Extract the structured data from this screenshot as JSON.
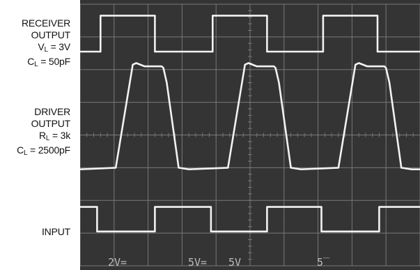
{
  "labels": {
    "receiver": {
      "line1": "RECEIVER",
      "line2": "OUTPUT",
      "vl_prefix": "V",
      "vl_sub": "L",
      "vl_value": " = 3V",
      "cl_prefix": "C",
      "cl_sub": "L",
      "cl_value": " = 50pF"
    },
    "driver": {
      "line1": "DRIVER",
      "line2": "OUTPUT",
      "rl_prefix": "R",
      "rl_sub": "L",
      "rl_value": " = 3k",
      "cl_prefix": "C",
      "cl_sub": "L",
      "cl_value": " = 2500pF"
    },
    "input": "INPUT"
  },
  "scope_readouts": [
    "2V=",
    "5V=",
    "5V",
    "5̅"
  ],
  "colors": {
    "screen": "#343434",
    "grid": "#787878",
    "trace": "#f2f2f2",
    "readout": "#bdbdbd",
    "label": "#111111"
  },
  "chart_data": {
    "type": "line",
    "title": "",
    "xlabel": "",
    "ylabel": "",
    "grid": true,
    "grid_divisions": {
      "x": 10,
      "y": 8
    },
    "xlim": [
      0,
      10
    ],
    "ylim": [
      0,
      8
    ],
    "units": "divisions",
    "series": [
      {
        "name": "RECEIVER OUTPUT",
        "points": [
          [
            0.0,
            6.55
          ],
          [
            0.6,
            6.55
          ],
          [
            0.6,
            7.65
          ],
          [
            2.2,
            7.65
          ],
          [
            2.2,
            6.55
          ],
          [
            3.9,
            6.55
          ],
          [
            3.9,
            7.65
          ],
          [
            5.5,
            7.65
          ],
          [
            5.5,
            6.55
          ],
          [
            7.15,
            6.55
          ],
          [
            7.15,
            7.65
          ],
          [
            8.75,
            7.65
          ],
          [
            8.75,
            6.55
          ],
          [
            10.0,
            6.55
          ]
        ]
      },
      {
        "name": "DRIVER OUTPUT",
        "points": [
          [
            0.0,
            2.95
          ],
          [
            1.05,
            3.0
          ],
          [
            1.55,
            6.15
          ],
          [
            1.65,
            6.2
          ],
          [
            1.9,
            6.1
          ],
          [
            2.4,
            6.1
          ],
          [
            2.45,
            6.05
          ],
          [
            2.55,
            5.6
          ],
          [
            2.9,
            3.0
          ],
          [
            3.2,
            2.95
          ],
          [
            4.35,
            3.0
          ],
          [
            4.85,
            6.15
          ],
          [
            4.95,
            6.2
          ],
          [
            5.2,
            6.1
          ],
          [
            5.7,
            6.1
          ],
          [
            5.75,
            6.05
          ],
          [
            5.85,
            5.6
          ],
          [
            6.2,
            3.0
          ],
          [
            6.5,
            2.95
          ],
          [
            7.6,
            3.0
          ],
          [
            8.1,
            6.15
          ],
          [
            8.2,
            6.2
          ],
          [
            8.45,
            6.1
          ],
          [
            8.95,
            6.1
          ],
          [
            9.0,
            6.05
          ],
          [
            9.1,
            5.6
          ],
          [
            9.45,
            3.0
          ],
          [
            9.75,
            2.95
          ],
          [
            10.0,
            2.95
          ]
        ]
      },
      {
        "name": "INPUT",
        "points": [
          [
            0.0,
            1.8
          ],
          [
            0.5,
            1.8
          ],
          [
            0.5,
            1.05
          ],
          [
            2.2,
            1.05
          ],
          [
            2.2,
            1.8
          ],
          [
            3.85,
            1.8
          ],
          [
            3.85,
            1.05
          ],
          [
            5.5,
            1.05
          ],
          [
            5.5,
            1.8
          ],
          [
            7.1,
            1.8
          ],
          [
            7.1,
            1.05
          ],
          [
            8.8,
            1.05
          ],
          [
            8.8,
            1.8
          ],
          [
            10.0,
            1.8
          ]
        ]
      }
    ]
  }
}
